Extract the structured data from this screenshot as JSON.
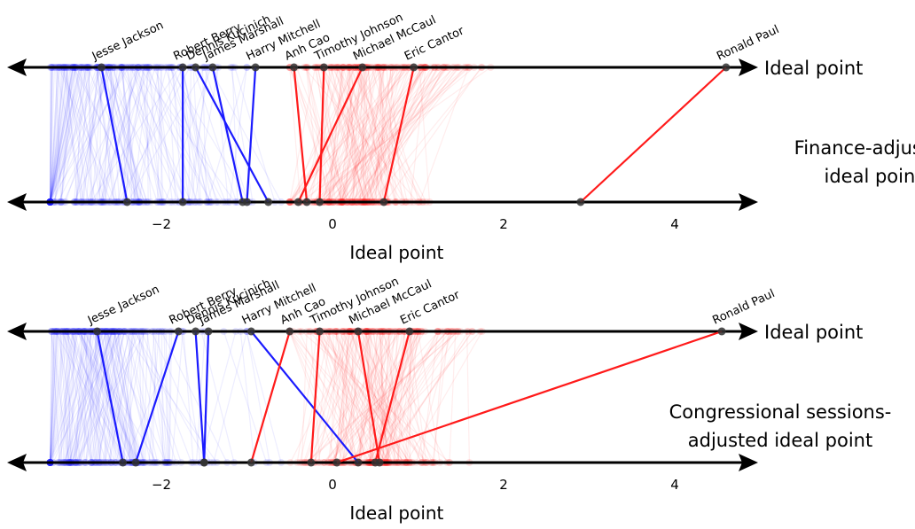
{
  "chart_data": [
    {
      "type": "scatter",
      "top_axis_label": "Ideal point",
      "bottom_axis_label": "Finance-adjusted ideal point",
      "bottom_axis_label_lines": [
        "Finance-adjusted",
        "ideal point"
      ],
      "xlabel": "Ideal point",
      "xlim": [
        -3.7,
        5
      ],
      "ticks": [
        -2,
        0,
        2,
        4
      ],
      "tick_labels": [
        "−2",
        "0",
        "2",
        "4"
      ],
      "highlighted": [
        {
          "name": "Jesse Jackson",
          "party": "D",
          "ideal": -2.7,
          "adjusted": -2.4
        },
        {
          "name": "Robert Berry",
          "party": "D",
          "ideal": -1.75,
          "adjusted": -1.75
        },
        {
          "name": "Dennis Kucinich",
          "party": "D",
          "ideal": -1.6,
          "adjusted": -0.75
        },
        {
          "name": "James Marshall",
          "party": "D",
          "ideal": -1.4,
          "adjusted": -1.05
        },
        {
          "name": "Harry Mitchell",
          "party": "D",
          "ideal": -0.9,
          "adjusted": -1.0
        },
        {
          "name": "Anh Cao",
          "party": "R",
          "ideal": -0.45,
          "adjusted": -0.3
        },
        {
          "name": "Timothy Johnson",
          "party": "R",
          "ideal": -0.1,
          "adjusted": -0.15
        },
        {
          "name": "Michael McCaul",
          "party": "R",
          "ideal": 0.35,
          "adjusted": -0.4
        },
        {
          "name": "Eric Cantor",
          "party": "R",
          "ideal": 0.95,
          "adjusted": 0.6
        },
        {
          "name": "Ronald Paul",
          "party": "R",
          "ideal": 4.6,
          "adjusted": 2.9
        }
      ]
    },
    {
      "type": "scatter",
      "top_axis_label": "Ideal point",
      "bottom_axis_label": "Congressional sessions-adjusted ideal point",
      "bottom_axis_label_lines": [
        "Congressional sessions-",
        "adjusted ideal point"
      ],
      "xlabel": "Ideal point",
      "xlim": [
        -3.7,
        5
      ],
      "ticks": [
        -2,
        0,
        2,
        4
      ],
      "tick_labels": [
        "−2",
        "0",
        "2",
        "4"
      ],
      "highlighted": [
        {
          "name": "Jesse Jackson",
          "party": "D",
          "ideal": -2.75,
          "adjusted": -2.45
        },
        {
          "name": "Robert Berry",
          "party": "D",
          "ideal": -1.8,
          "adjusted": -2.3
        },
        {
          "name": "Dennis Kucinich",
          "party": "D",
          "ideal": -1.6,
          "adjusted": -1.5
        },
        {
          "name": "James Marshall",
          "party": "D",
          "ideal": -1.45,
          "adjusted": -1.5
        },
        {
          "name": "Harry Mitchell",
          "party": "D",
          "ideal": -0.95,
          "adjusted": 0.3
        },
        {
          "name": "Anh Cao",
          "party": "R",
          "ideal": -0.5,
          "adjusted": -0.95
        },
        {
          "name": "Timothy Johnson",
          "party": "R",
          "ideal": -0.15,
          "adjusted": -0.25
        },
        {
          "name": "Michael McCaul",
          "party": "R",
          "ideal": 0.3,
          "adjusted": 0.55
        },
        {
          "name": "Eric Cantor",
          "party": "R",
          "ideal": 0.9,
          "adjusted": 0.5
        },
        {
          "name": "Ronald Paul",
          "party": "R",
          "ideal": 4.55,
          "adjusted": 0.05
        }
      ]
    }
  ],
  "colors": {
    "democrat": "#1a1aff",
    "republican": "#ff1a1a",
    "axis": "#000000",
    "highlight_point": "#333333"
  }
}
